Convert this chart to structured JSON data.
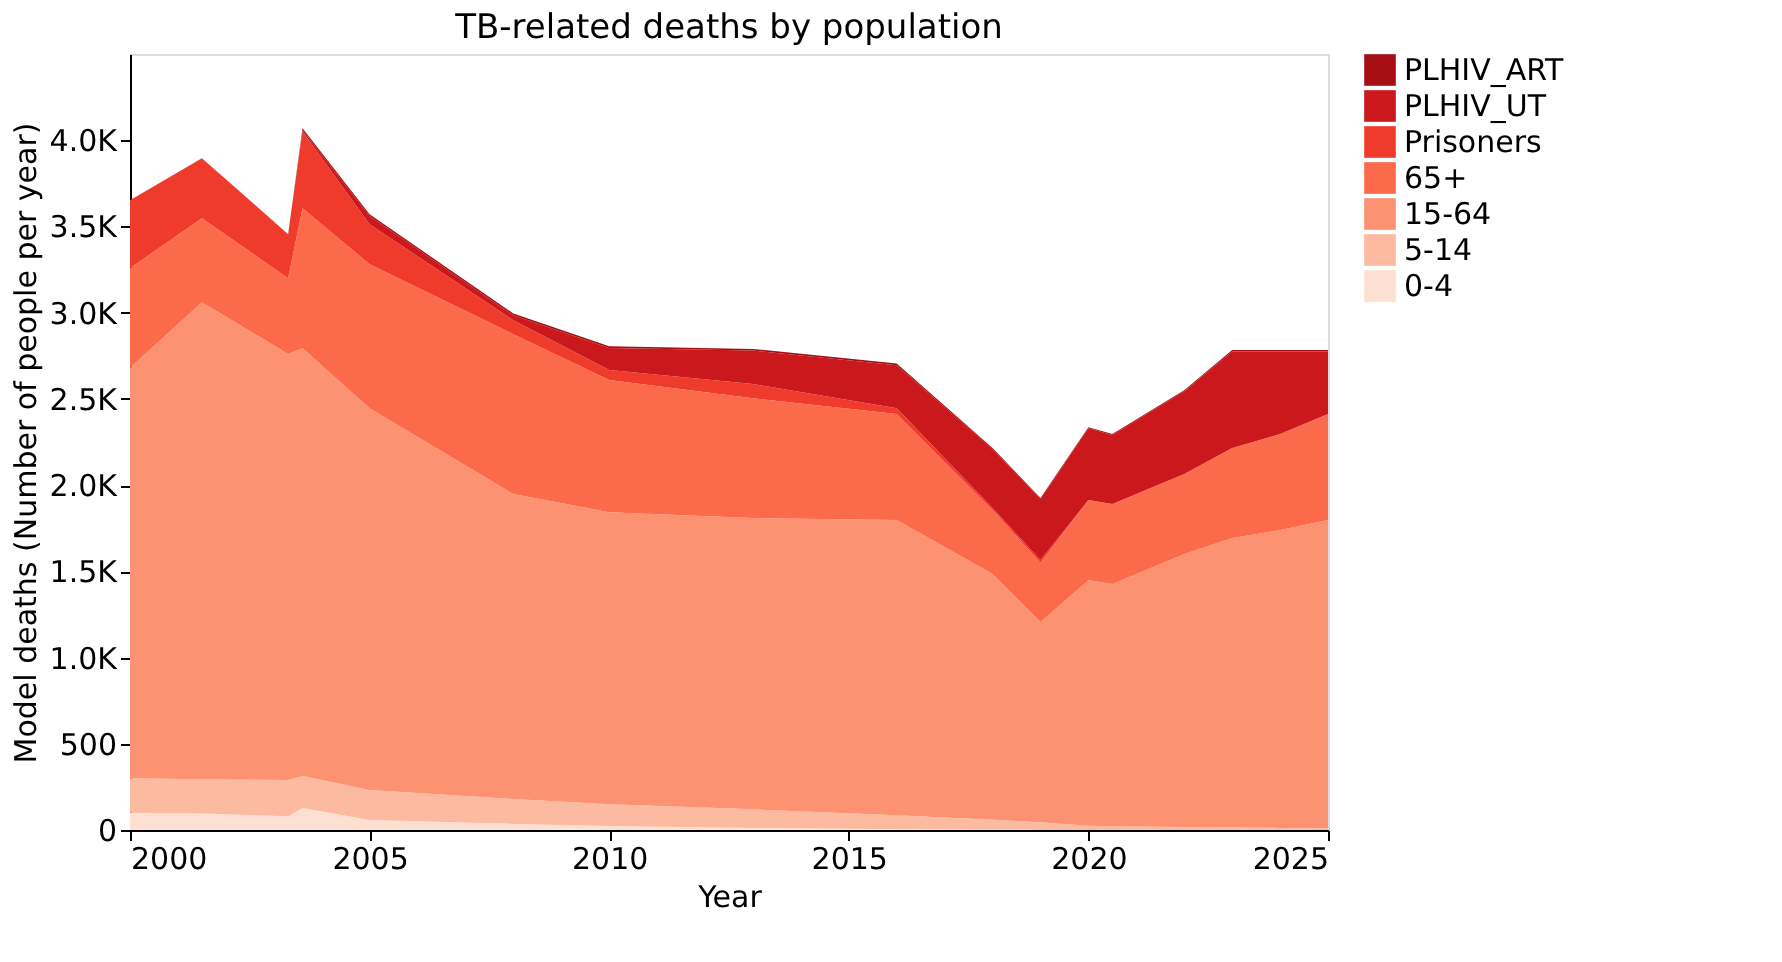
{
  "chart_data": {
    "type": "area",
    "stacked": true,
    "title": "TB-related deaths by population",
    "xlabel": "Year",
    "ylabel": "Model deaths (Number of people per year)",
    "x": [
      2000,
      2001.5,
      2003.3,
      2003.6,
      2005,
      2008,
      2010,
      2013,
      2016,
      2018,
      2019,
      2020,
      2020.5,
      2022,
      2023,
      2024,
      2025
    ],
    "series": [
      {
        "name": "0-4",
        "color": "#fee0d2",
        "values": [
          100,
          95,
          80,
          127,
          58,
          35,
          23,
          12,
          5,
          2,
          0,
          0,
          0,
          0,
          0,
          0,
          0
        ]
      },
      {
        "name": "5-14",
        "color": "#fcbba1",
        "values": [
          200,
          200,
          210,
          186,
          174,
          145,
          127,
          108,
          80,
          58,
          45,
          25,
          22,
          18,
          15,
          12,
          10
        ]
      },
      {
        "name": "15-64",
        "color": "#fc9272",
        "values": [
          2380,
          2765,
          2470,
          2481,
          2214,
          1768,
          1693,
          1689,
          1712,
          1424,
          1161,
          1424,
          1404,
          1582,
          1678,
          1727,
          1787
        ]
      },
      {
        "name": "65+",
        "color": "#fb6a4a",
        "values": [
          578,
          488,
          440,
          812,
          835,
          927,
          766,
          695,
          615,
          371,
          344,
          464,
          464,
          464,
          522,
          557,
          615
        ]
      },
      {
        "name": "Prisoners",
        "color": "#ef3b2c",
        "values": [
          394,
          348,
          255,
          444,
          232,
          81,
          58,
          82,
          34,
          12,
          15,
          0,
          0,
          0,
          0,
          0,
          0
        ]
      },
      {
        "name": "PLHIV_UT",
        "color": "#cb181d",
        "values": [
          0,
          0,
          0,
          10,
          47,
          29,
          128,
          194,
          249,
          343,
          355,
          417,
          400,
          481,
          560,
          479,
          363
        ]
      },
      {
        "name": "PLHIV_ART",
        "color": "#a50f15",
        "values": [
          0,
          0,
          0,
          10,
          10,
          10,
          10,
          10,
          10,
          5,
          5,
          5,
          6,
          5,
          8,
          8,
          8
        ]
      }
    ],
    "xlim": [
      2000,
      2025
    ],
    "xticks": [
      2000,
      2005,
      2010,
      2015,
      2020,
      2025
    ],
    "ylim": [
      0,
      4500
    ],
    "yticks": [
      0,
      500,
      {
        "value": 1000,
        "label": "1.0K"
      },
      {
        "value": 1500,
        "label": "1.5K"
      },
      {
        "value": 2000,
        "label": "2.0K"
      },
      {
        "value": 2500,
        "label": "2.5K"
      },
      {
        "value": 3000,
        "label": "3.0K"
      },
      {
        "value": 3500,
        "label": "3.5K"
      },
      {
        "value": 4000,
        "label": "4.0K"
      }
    ],
    "legend": "right",
    "grid": false
  }
}
